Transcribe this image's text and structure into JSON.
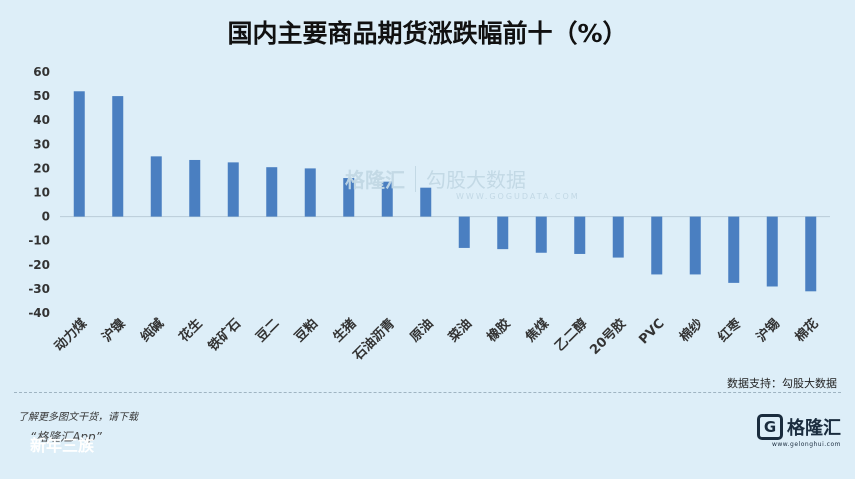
{
  "chart_data": {
    "type": "bar",
    "title": "国内主要商品期货涨跌幅前十（%）",
    "categories": [
      "动力煤",
      "沪镍",
      "纯碱",
      "花生",
      "铁矿石",
      "豆二",
      "豆粕",
      "生猪",
      "石油沥青",
      "原油",
      "菜油",
      "橡胶",
      "焦煤",
      "乙二醇",
      "20号胶",
      "PVC",
      "棉纱",
      "红枣",
      "沪锡",
      "棉花"
    ],
    "values": [
      52,
      50,
      25,
      23.5,
      22.5,
      20.5,
      20,
      16,
      14.5,
      12,
      -13,
      -13.5,
      -15,
      -15.5,
      -17,
      -24,
      -24,
      -27.5,
      -29,
      -31
    ],
    "ylim": [
      -40,
      60
    ],
    "yticks": [
      60,
      50,
      40,
      30,
      20,
      10,
      0,
      -10,
      -20,
      -30,
      -40
    ],
    "grid": false,
    "legend": "none",
    "bar_color": "#4a7fc1"
  },
  "source_note": "数据支持：勾股大数据",
  "watermark": {
    "logo_text": "格隆汇",
    "partner_text": "勾股大数据",
    "url": "WWW.GOGUDATA.COM"
  },
  "footer": {
    "line1": "了解更多图文干货，请下载",
    "line2": "“格隆汇App”",
    "line3": "新年三族"
  },
  "brand": {
    "icon_glyph": "G",
    "name": "格隆汇",
    "url": "www.gelonghui.com"
  },
  "colors": {
    "background": "#ddeef8",
    "bar": "#4a7fc1",
    "brand": "#1a2c3e"
  }
}
